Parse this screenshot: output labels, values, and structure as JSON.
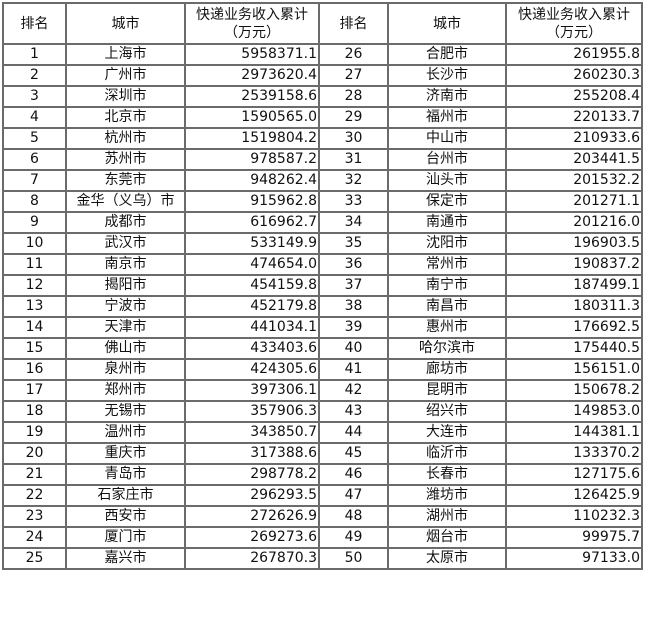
{
  "headers": {
    "rank": "排名",
    "city": "城市",
    "value_line1": "快递业务收入累计",
    "value_line2": "（万元）"
  },
  "rows": [
    {
      "rank": "1",
      "city": "上海市",
      "value": "5958371.1"
    },
    {
      "rank": "2",
      "city": "广州市",
      "value": "2973620.4"
    },
    {
      "rank": "3",
      "city": "深圳市",
      "value": "2539158.6"
    },
    {
      "rank": "4",
      "city": "北京市",
      "value": "1590565.0"
    },
    {
      "rank": "5",
      "city": "杭州市",
      "value": "1519804.2"
    },
    {
      "rank": "6",
      "city": "苏州市",
      "value": "978587.2"
    },
    {
      "rank": "7",
      "city": "东莞市",
      "value": "948262.4"
    },
    {
      "rank": "8",
      "city": "金华（义乌）市",
      "value": "915962.8"
    },
    {
      "rank": "9",
      "city": "成都市",
      "value": "616962.7"
    },
    {
      "rank": "10",
      "city": "武汉市",
      "value": "533149.9"
    },
    {
      "rank": "11",
      "city": "南京市",
      "value": "474654.0"
    },
    {
      "rank": "12",
      "city": "揭阳市",
      "value": "454159.8"
    },
    {
      "rank": "13",
      "city": "宁波市",
      "value": "452179.8"
    },
    {
      "rank": "14",
      "city": "天津市",
      "value": "441034.1"
    },
    {
      "rank": "15",
      "city": "佛山市",
      "value": "433403.6"
    },
    {
      "rank": "16",
      "city": "泉州市",
      "value": "424305.6"
    },
    {
      "rank": "17",
      "city": "郑州市",
      "value": "397306.1"
    },
    {
      "rank": "18",
      "city": "无锡市",
      "value": "357906.3"
    },
    {
      "rank": "19",
      "city": "温州市",
      "value": "343850.7"
    },
    {
      "rank": "20",
      "city": "重庆市",
      "value": "317388.6"
    },
    {
      "rank": "21",
      "city": "青岛市",
      "value": "298778.2"
    },
    {
      "rank": "22",
      "city": "石家庄市",
      "value": "296293.5"
    },
    {
      "rank": "23",
      "city": "西安市",
      "value": "272626.9"
    },
    {
      "rank": "24",
      "city": "厦门市",
      "value": "269273.6"
    },
    {
      "rank": "25",
      "city": "嘉兴市",
      "value": "267870.3"
    },
    {
      "rank": "26",
      "city": "合肥市",
      "value": "261955.8"
    },
    {
      "rank": "27",
      "city": "长沙市",
      "value": "260230.3"
    },
    {
      "rank": "28",
      "city": "济南市",
      "value": "255208.4"
    },
    {
      "rank": "29",
      "city": "福州市",
      "value": "220133.7"
    },
    {
      "rank": "30",
      "city": "中山市",
      "value": "210933.6"
    },
    {
      "rank": "31",
      "city": "台州市",
      "value": "203441.5"
    },
    {
      "rank": "32",
      "city": "汕头市",
      "value": "201532.2"
    },
    {
      "rank": "33",
      "city": "保定市",
      "value": "201271.1"
    },
    {
      "rank": "34",
      "city": "南通市",
      "value": "201216.0"
    },
    {
      "rank": "35",
      "city": "沈阳市",
      "value": "196903.5"
    },
    {
      "rank": "36",
      "city": "常州市",
      "value": "190837.2"
    },
    {
      "rank": "37",
      "city": "南宁市",
      "value": "187499.1"
    },
    {
      "rank": "38",
      "city": "南昌市",
      "value": "180311.3"
    },
    {
      "rank": "39",
      "city": "惠州市",
      "value": "176692.5"
    },
    {
      "rank": "40",
      "city": "哈尔滨市",
      "value": "175440.5"
    },
    {
      "rank": "41",
      "city": "廊坊市",
      "value": "156151.0"
    },
    {
      "rank": "42",
      "city": "昆明市",
      "value": "150678.2"
    },
    {
      "rank": "43",
      "city": "绍兴市",
      "value": "149853.0"
    },
    {
      "rank": "44",
      "city": "大连市",
      "value": "144381.1"
    },
    {
      "rank": "45",
      "city": "临沂市",
      "value": "133370.2"
    },
    {
      "rank": "46",
      "city": "长春市",
      "value": "127175.6"
    },
    {
      "rank": "47",
      "city": "潍坊市",
      "value": "126425.9"
    },
    {
      "rank": "48",
      "city": "湖州市",
      "value": "110232.3"
    },
    {
      "rank": "49",
      "city": "烟台市",
      "value": "99975.7"
    },
    {
      "rank": "50",
      "city": "太原市",
      "value": "97133.0"
    }
  ]
}
